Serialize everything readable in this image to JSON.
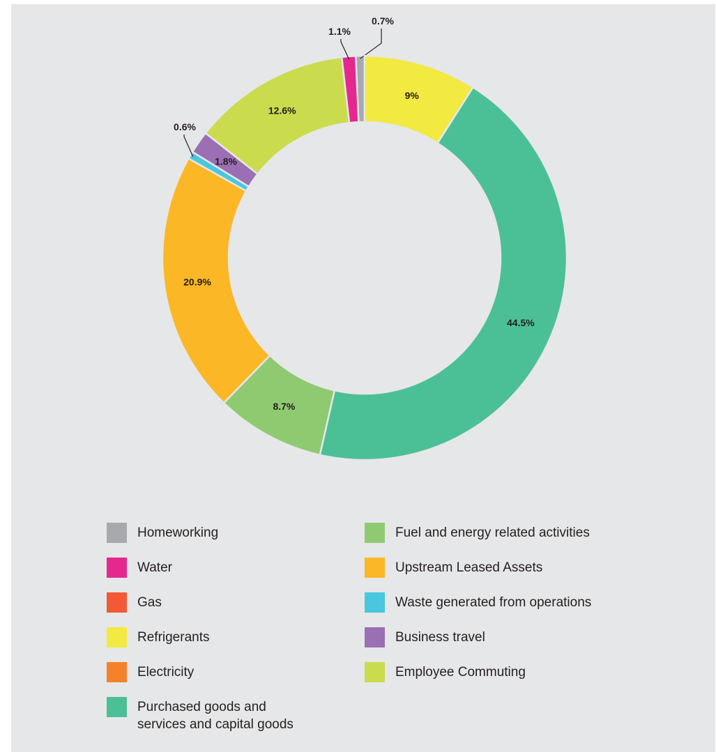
{
  "chart_data": {
    "type": "pie",
    "donut": true,
    "title": "",
    "slices": [
      {
        "name": "Homeworking",
        "value": 0.7,
        "label": "0.7%",
        "color": "#a7a9ac"
      },
      {
        "name": "Refrigerants",
        "value": 9,
        "label": "9%",
        "color": "#f2e941"
      },
      {
        "name": "Purchased goods and services and capital goods",
        "value": 44.5,
        "label": "44.5%",
        "color": "#4bc096"
      },
      {
        "name": "Fuel and energy related activities",
        "value": 8.7,
        "label": "8.7%",
        "color": "#8fca71"
      },
      {
        "name": "Upstream Leased Assets",
        "value": 20.9,
        "label": "20.9%",
        "color": "#fbb726"
      },
      {
        "name": "Waste generated from operations",
        "value": 0.6,
        "label": "0.6%",
        "color": "#4ac6de"
      },
      {
        "name": "Business travel",
        "value": 1.8,
        "label": "1.8%",
        "color": "#9b6fb4"
      },
      {
        "name": "Employee Commuting",
        "value": 12.6,
        "label": "12.6%",
        "color": "#cbdb4e"
      },
      {
        "name": "Water",
        "value": 1.1,
        "label": "1.1%",
        "color": "#e5288d"
      }
    ],
    "legend_placement": "bottom"
  },
  "legend": [
    {
      "label": "Homeworking",
      "color": "#a7a9ac"
    },
    {
      "label": "Water",
      "color": "#e5288d"
    },
    {
      "label": "Gas",
      "color": "#f15a35"
    },
    {
      "label": "Refrigerants",
      "color": "#f2e941"
    },
    {
      "label": "Electricity",
      "color": "#f5822a"
    },
    {
      "label": "Purchased goods and\nservices and capital goods",
      "color": "#4bc096"
    },
    {
      "label": "Fuel and energy related activities",
      "color": "#8fca71"
    },
    {
      "label": "Upstream Leased Assets",
      "color": "#fbb726"
    },
    {
      "label": "Waste generated from operations",
      "color": "#4ac6de"
    },
    {
      "label": "Business travel",
      "color": "#9b6fb4"
    },
    {
      "label": "Employee Commuting",
      "color": "#cbdb4e"
    }
  ]
}
